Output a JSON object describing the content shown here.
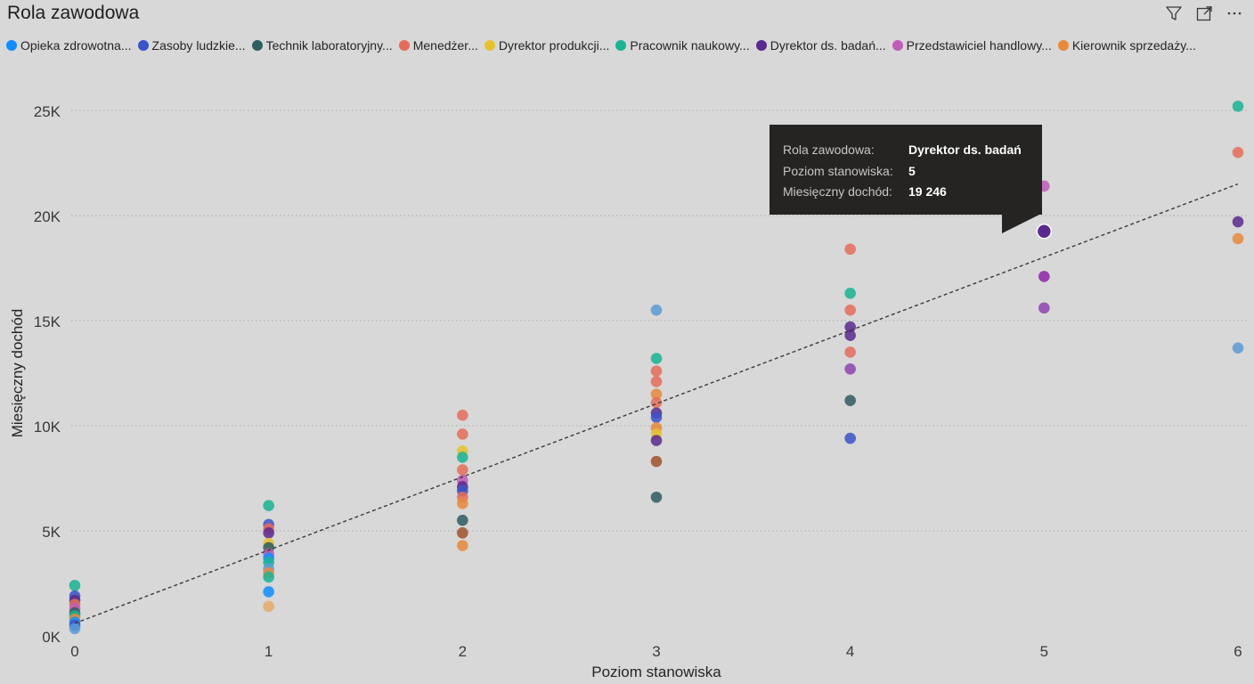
{
  "visual": {
    "title": "Rola zawodowa"
  },
  "header_icons": [
    "filter-icon",
    "focus-mode-icon",
    "more-options-icon"
  ],
  "legend": [
    {
      "label": "Opieka zdrowotna...",
      "color": "#118dff"
    },
    {
      "label": "Zasoby ludzkie...",
      "color": "#3a53c8"
    },
    {
      "label": "Technik laboratoryjny...",
      "color": "#2e5d62"
    },
    {
      "label": "Menedżer...",
      "color": "#e66c5a"
    },
    {
      "label": "Dyrektor produkcji...",
      "color": "#e6c22e"
    },
    {
      "label": "Pracownik naukowy...",
      "color": "#1ab394"
    },
    {
      "label": "Dyrektor ds. badań...",
      "color": "#5b2a8e"
    },
    {
      "label": "Przedstawiciel handlowy...",
      "color": "#c05bb8"
    },
    {
      "label": "Kierownik sprzedaży...",
      "color": "#e8893c"
    }
  ],
  "tooltip": {
    "rows": [
      {
        "key": "Rola zawodowa:",
        "value": "Dyrektor ds. badań"
      },
      {
        "key": "Poziom stanowiska:",
        "value": "5"
      },
      {
        "key": "Miesięczny dochód:",
        "value": "19 246"
      }
    ]
  },
  "chart_data": {
    "type": "scatter",
    "xlabel": "Poziom stanowiska",
    "ylabel": "Miesięczny dochód",
    "xlim": [
      0,
      6
    ],
    "ylim": [
      0,
      25000
    ],
    "x_ticks": [
      "0",
      "1",
      "2",
      "3",
      "4",
      "5",
      "6"
    ],
    "y_ticks": [
      {
        "value": 0,
        "label": "0K"
      },
      {
        "value": 5000,
        "label": "5K"
      },
      {
        "value": 10000,
        "label": "10K"
      },
      {
        "value": 15000,
        "label": "15K"
      },
      {
        "value": 20000,
        "label": "20K"
      },
      {
        "value": 25000,
        "label": "25K"
      }
    ],
    "grid": true,
    "trendline": {
      "x": [
        0,
        6
      ],
      "y": [
        600,
        21500
      ]
    },
    "highlighted_point": {
      "x": 5,
      "y": 19246,
      "color": "#5b2a8e"
    },
    "points": [
      {
        "x": 0,
        "y": 2400,
        "color": "#1ab394"
      },
      {
        "x": 0,
        "y": 1900,
        "color": "#3a53c8"
      },
      {
        "x": 0,
        "y": 1700,
        "color": "#5b2a8e"
      },
      {
        "x": 0,
        "y": 1500,
        "color": "#e66c5a"
      },
      {
        "x": 0,
        "y": 1300,
        "color": "#c05bb8"
      },
      {
        "x": 0,
        "y": 1100,
        "color": "#2e5d62"
      },
      {
        "x": 0,
        "y": 950,
        "color": "#1ab394"
      },
      {
        "x": 0,
        "y": 800,
        "color": "#e8893c"
      },
      {
        "x": 0,
        "y": 650,
        "color": "#118dff"
      },
      {
        "x": 0,
        "y": 500,
        "color": "#3a53c8"
      },
      {
        "x": 0,
        "y": 350,
        "color": "#5b9bd5"
      },
      {
        "x": 1,
        "y": 6200,
        "color": "#1ab394"
      },
      {
        "x": 1,
        "y": 5300,
        "color": "#3a53c8"
      },
      {
        "x": 1,
        "y": 5100,
        "color": "#e66c5a"
      },
      {
        "x": 1,
        "y": 4900,
        "color": "#5b2a8e"
      },
      {
        "x": 1,
        "y": 4400,
        "color": "#e6c22e"
      },
      {
        "x": 1,
        "y": 4200,
        "color": "#2e5d62"
      },
      {
        "x": 1,
        "y": 3900,
        "color": "#c05bb8"
      },
      {
        "x": 1,
        "y": 3700,
        "color": "#118dff"
      },
      {
        "x": 1,
        "y": 3500,
        "color": "#1ab394"
      },
      {
        "x": 1,
        "y": 3200,
        "color": "#5b9bd5"
      },
      {
        "x": 1,
        "y": 3000,
        "color": "#e8893c"
      },
      {
        "x": 1,
        "y": 2800,
        "color": "#1ab394"
      },
      {
        "x": 1,
        "y": 2100,
        "color": "#118dff"
      },
      {
        "x": 1,
        "y": 1400,
        "color": "#e8a96a"
      },
      {
        "x": 2,
        "y": 10500,
        "color": "#e66c5a"
      },
      {
        "x": 2,
        "y": 9600,
        "color": "#e66c5a"
      },
      {
        "x": 2,
        "y": 8800,
        "color": "#e6c22e"
      },
      {
        "x": 2,
        "y": 8500,
        "color": "#1ab394"
      },
      {
        "x": 2,
        "y": 7900,
        "color": "#e66c5a"
      },
      {
        "x": 2,
        "y": 7400,
        "color": "#c05bb8"
      },
      {
        "x": 2,
        "y": 7100,
        "color": "#5b2a8e"
      },
      {
        "x": 2,
        "y": 6900,
        "color": "#3a53c8"
      },
      {
        "x": 2,
        "y": 6600,
        "color": "#e66c5a"
      },
      {
        "x": 2,
        "y": 6300,
        "color": "#e8893c"
      },
      {
        "x": 2,
        "y": 5500,
        "color": "#2e5d62"
      },
      {
        "x": 2,
        "y": 4900,
        "color": "#a0522d"
      },
      {
        "x": 2,
        "y": 4300,
        "color": "#e8893c"
      },
      {
        "x": 3,
        "y": 15500,
        "color": "#5b9bd5"
      },
      {
        "x": 3,
        "y": 13200,
        "color": "#1ab394"
      },
      {
        "x": 3,
        "y": 12600,
        "color": "#e66c5a"
      },
      {
        "x": 3,
        "y": 12100,
        "color": "#e66c5a"
      },
      {
        "x": 3,
        "y": 11500,
        "color": "#e8893c"
      },
      {
        "x": 3,
        "y": 11100,
        "color": "#e66c5a"
      },
      {
        "x": 3,
        "y": 10600,
        "color": "#5b2a8e"
      },
      {
        "x": 3,
        "y": 10400,
        "color": "#3a53c8"
      },
      {
        "x": 3,
        "y": 9900,
        "color": "#e8893c"
      },
      {
        "x": 3,
        "y": 9600,
        "color": "#e6c22e"
      },
      {
        "x": 3,
        "y": 9300,
        "color": "#5b2a8e"
      },
      {
        "x": 3,
        "y": 8300,
        "color": "#a0522d"
      },
      {
        "x": 3,
        "y": 6600,
        "color": "#2e5d62"
      },
      {
        "x": 4,
        "y": 18400,
        "color": "#e66c5a"
      },
      {
        "x": 4,
        "y": 16300,
        "color": "#1ab394"
      },
      {
        "x": 4,
        "y": 15500,
        "color": "#e66c5a"
      },
      {
        "x": 4,
        "y": 14700,
        "color": "#5b2a8e"
      },
      {
        "x": 4,
        "y": 14300,
        "color": "#5b2a8e"
      },
      {
        "x": 4,
        "y": 13500,
        "color": "#e66c5a"
      },
      {
        "x": 4,
        "y": 12700,
        "color": "#8e44ad"
      },
      {
        "x": 4,
        "y": 11200,
        "color": "#2e5d62"
      },
      {
        "x": 4,
        "y": 9400,
        "color": "#3a53c8"
      },
      {
        "x": 5,
        "y": 21400,
        "color": "#c05bb8"
      },
      {
        "x": 5,
        "y": 17100,
        "color": "#8e24aa"
      },
      {
        "x": 5,
        "y": 15600,
        "color": "#8e44ad"
      },
      {
        "x": 6,
        "y": 25200,
        "color": "#1ab394"
      },
      {
        "x": 6,
        "y": 23000,
        "color": "#e66c5a"
      },
      {
        "x": 6,
        "y": 19700,
        "color": "#5b2a8e"
      },
      {
        "x": 6,
        "y": 18900,
        "color": "#e8893c"
      },
      {
        "x": 6,
        "y": 13700,
        "color": "#5b9bd5"
      }
    ]
  }
}
